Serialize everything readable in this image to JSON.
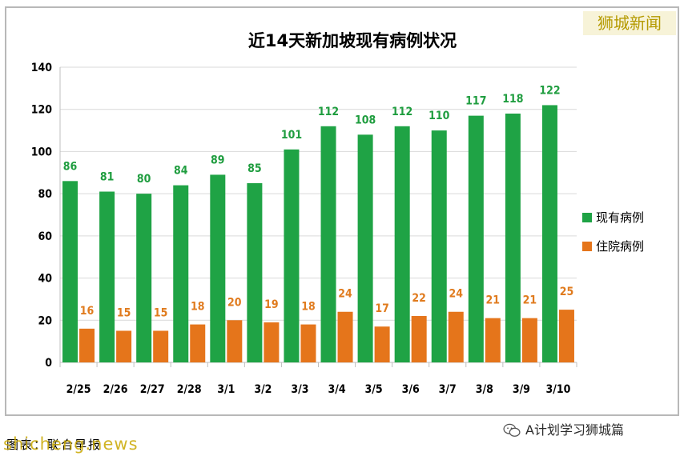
{
  "brand": "狮城新闻",
  "wechat_label": "A计划学习狮城篇",
  "source_label": "图表：联合早报",
  "watermark": "shicheng.news",
  "chart_data": {
    "type": "bar",
    "title": "近14天新加坡现有病例状况",
    "categories": [
      "2/25",
      "2/26",
      "2/27",
      "2/28",
      "3/1",
      "3/2",
      "3/3",
      "3/4",
      "3/5",
      "3/6",
      "3/7",
      "3/8",
      "3/9",
      "3/10"
    ],
    "series": [
      {
        "name": "现有病例",
        "color": "#1fa345",
        "label_color": "#1f9d3f",
        "values": [
          86,
          81,
          80,
          84,
          89,
          85,
          101,
          112,
          108,
          112,
          110,
          117,
          118,
          122
        ]
      },
      {
        "name": "住院病例",
        "color": "#e5751b",
        "label_color": "#e07b1e",
        "values": [
          16,
          15,
          15,
          18,
          20,
          19,
          18,
          24,
          17,
          22,
          24,
          21,
          21,
          25
        ]
      }
    ],
    "ylim": [
      0,
      140
    ],
    "yticks": [
      0,
      20,
      40,
      60,
      80,
      100,
      120,
      140
    ],
    "xlabel": "",
    "ylabel": "",
    "grid": true,
    "legend": "right"
  }
}
